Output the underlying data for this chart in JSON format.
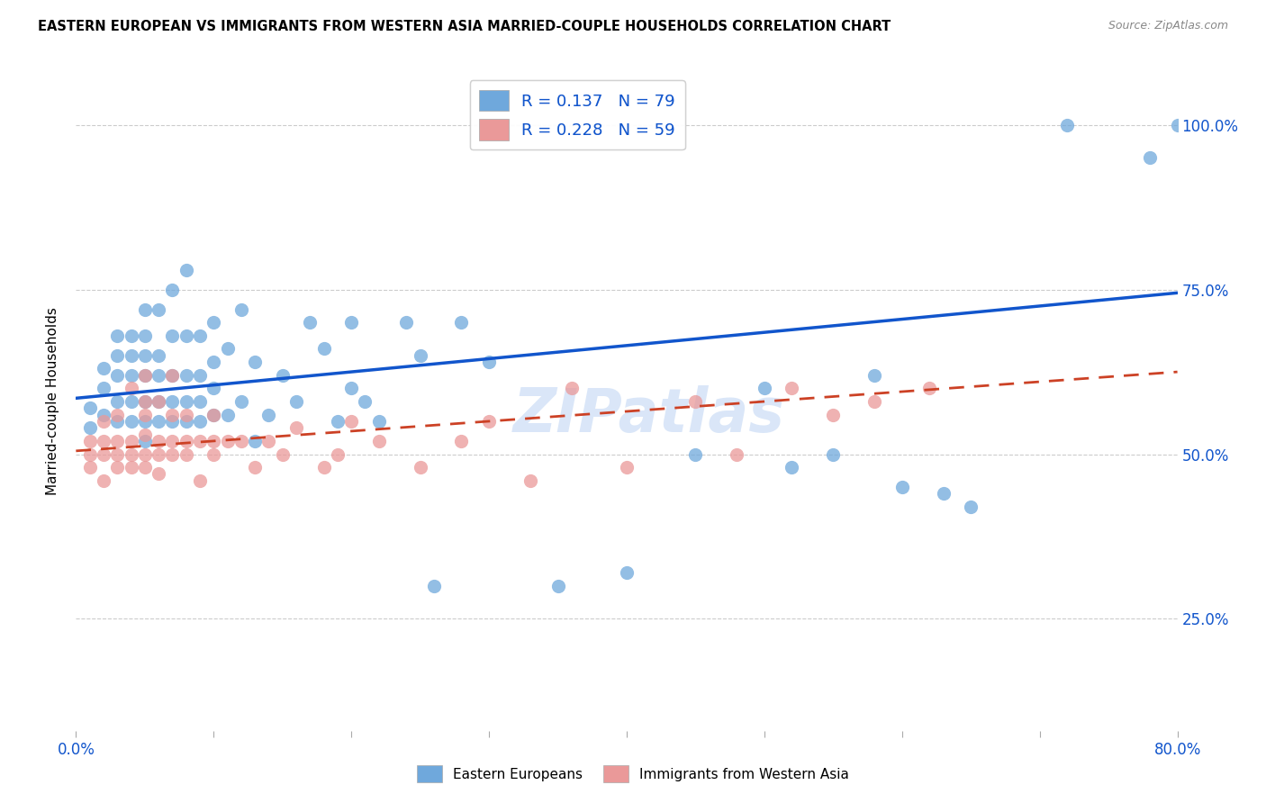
{
  "title": "EASTERN EUROPEAN VS IMMIGRANTS FROM WESTERN ASIA MARRIED-COUPLE HOUSEHOLDS CORRELATION CHART",
  "source": "Source: ZipAtlas.com",
  "ylabel": "Married-couple Households",
  "legend_r1": "R = 0.137",
  "legend_n1": "N = 79",
  "legend_r2": "R = 0.228",
  "legend_n2": "N = 59",
  "blue_color": "#6fa8dc",
  "pink_color": "#ea9999",
  "blue_line_color": "#1155cc",
  "pink_line_color": "#cc4125",
  "blue_text_color": "#1155cc",
  "watermark": "ZIPatlas",
  "blue_scatter_x": [
    0.01,
    0.01,
    0.02,
    0.02,
    0.02,
    0.03,
    0.03,
    0.03,
    0.03,
    0.03,
    0.04,
    0.04,
    0.04,
    0.04,
    0.04,
    0.05,
    0.05,
    0.05,
    0.05,
    0.05,
    0.05,
    0.05,
    0.06,
    0.06,
    0.06,
    0.06,
    0.06,
    0.07,
    0.07,
    0.07,
    0.07,
    0.07,
    0.08,
    0.08,
    0.08,
    0.08,
    0.08,
    0.09,
    0.09,
    0.09,
    0.09,
    0.1,
    0.1,
    0.1,
    0.1,
    0.11,
    0.11,
    0.12,
    0.12,
    0.13,
    0.13,
    0.14,
    0.15,
    0.16,
    0.17,
    0.18,
    0.19,
    0.2,
    0.2,
    0.21,
    0.22,
    0.24,
    0.25,
    0.26,
    0.28,
    0.3,
    0.35,
    0.4,
    0.45,
    0.5,
    0.52,
    0.55,
    0.58,
    0.6,
    0.63,
    0.65,
    0.72,
    0.78,
    0.8
  ],
  "blue_scatter_y": [
    0.54,
    0.57,
    0.56,
    0.6,
    0.63,
    0.55,
    0.58,
    0.62,
    0.65,
    0.68,
    0.55,
    0.58,
    0.62,
    0.65,
    0.68,
    0.52,
    0.55,
    0.58,
    0.62,
    0.65,
    0.68,
    0.72,
    0.55,
    0.58,
    0.62,
    0.65,
    0.72,
    0.55,
    0.58,
    0.62,
    0.68,
    0.75,
    0.55,
    0.58,
    0.62,
    0.68,
    0.78,
    0.55,
    0.58,
    0.62,
    0.68,
    0.56,
    0.6,
    0.64,
    0.7,
    0.56,
    0.66,
    0.58,
    0.72,
    0.52,
    0.64,
    0.56,
    0.62,
    0.58,
    0.7,
    0.66,
    0.55,
    0.6,
    0.7,
    0.58,
    0.55,
    0.7,
    0.65,
    0.3,
    0.7,
    0.64,
    0.3,
    0.32,
    0.5,
    0.6,
    0.48,
    0.5,
    0.62,
    0.45,
    0.44,
    0.42,
    1.0,
    0.95,
    1.0
  ],
  "pink_scatter_x": [
    0.01,
    0.01,
    0.01,
    0.02,
    0.02,
    0.02,
    0.02,
    0.03,
    0.03,
    0.03,
    0.03,
    0.04,
    0.04,
    0.04,
    0.04,
    0.05,
    0.05,
    0.05,
    0.05,
    0.05,
    0.05,
    0.06,
    0.06,
    0.06,
    0.06,
    0.07,
    0.07,
    0.07,
    0.07,
    0.08,
    0.08,
    0.08,
    0.09,
    0.09,
    0.1,
    0.1,
    0.1,
    0.11,
    0.12,
    0.13,
    0.14,
    0.15,
    0.16,
    0.18,
    0.19,
    0.2,
    0.22,
    0.25,
    0.28,
    0.3,
    0.33,
    0.36,
    0.4,
    0.45,
    0.48,
    0.52,
    0.55,
    0.58,
    0.62
  ],
  "pink_scatter_y": [
    0.48,
    0.5,
    0.52,
    0.46,
    0.5,
    0.52,
    0.55,
    0.48,
    0.5,
    0.52,
    0.56,
    0.48,
    0.5,
    0.52,
    0.6,
    0.48,
    0.5,
    0.53,
    0.56,
    0.58,
    0.62,
    0.47,
    0.5,
    0.52,
    0.58,
    0.5,
    0.52,
    0.56,
    0.62,
    0.5,
    0.52,
    0.56,
    0.46,
    0.52,
    0.5,
    0.52,
    0.56,
    0.52,
    0.52,
    0.48,
    0.52,
    0.5,
    0.54,
    0.48,
    0.5,
    0.55,
    0.52,
    0.48,
    0.52,
    0.55,
    0.46,
    0.6,
    0.48,
    0.58,
    0.5,
    0.6,
    0.56,
    0.58,
    0.6
  ],
  "xmin": 0.0,
  "xmax": 0.8,
  "ymin": 0.08,
  "ymax": 1.08,
  "yticks": [
    0.25,
    0.5,
    0.75,
    1.0
  ],
  "ytick_labels": [
    "25.0%",
    "50.0%",
    "75.0%",
    "100.0%"
  ],
  "blue_line_x0": 0.0,
  "blue_line_y0": 0.585,
  "blue_line_x1": 0.8,
  "blue_line_y1": 0.745,
  "pink_line_x0": 0.0,
  "pink_line_y0": 0.505,
  "pink_line_x1": 0.8,
  "pink_line_y1": 0.625
}
